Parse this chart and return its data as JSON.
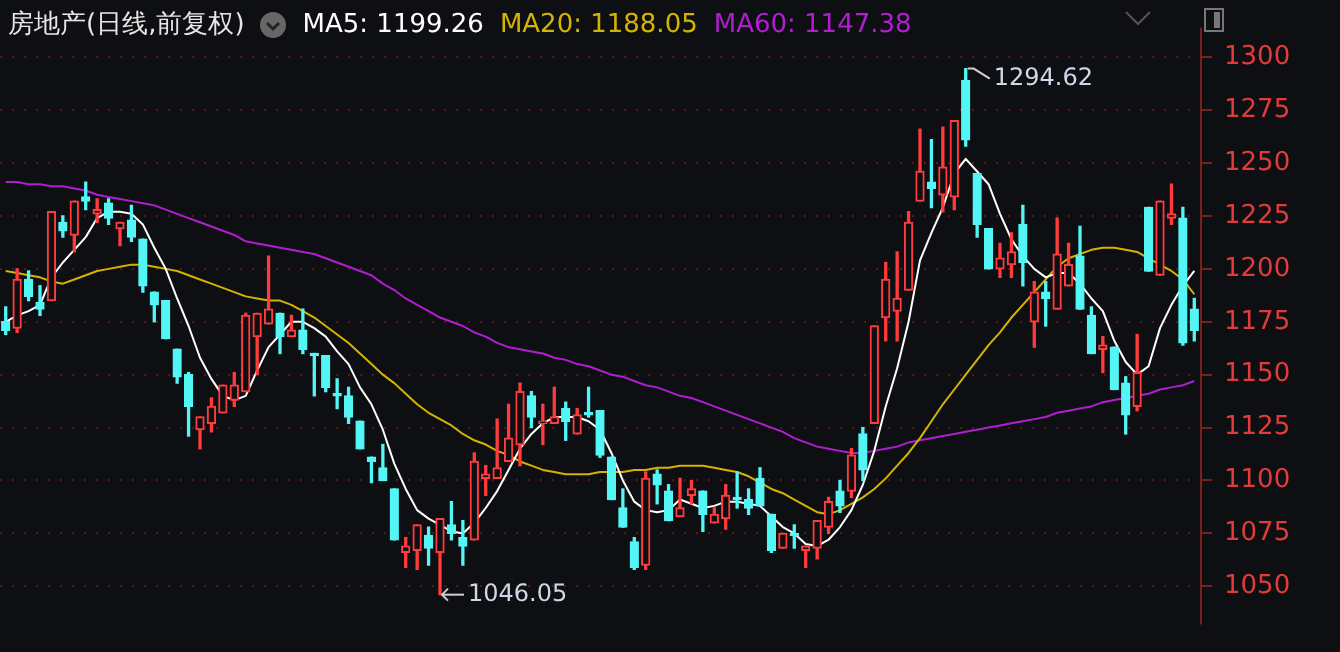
{
  "chart_data": {
    "type": "candlestick",
    "title": "房地产(日线,前复权)",
    "legend": "top left",
    "grid": "y",
    "tick_labels": "y",
    "ylim": [
      1032,
      1314
    ],
    "yticks": [
      1050,
      1075,
      1100,
      1125,
      1150,
      1175,
      1200,
      1225,
      1250,
      1275,
      1300
    ],
    "annotations": [
      "1294.62",
      "1046.05"
    ],
    "categories": [
      null,
      null,
      null,
      null,
      null,
      null,
      null,
      null,
      null,
      null,
      null,
      null,
      null,
      null,
      null,
      null,
      null,
      null,
      null,
      null,
      null,
      null,
      null,
      null,
      null,
      null,
      null,
      null,
      null,
      null,
      null,
      null,
      null,
      null,
      null,
      null,
      null,
      null,
      null,
      null,
      null,
      null,
      null,
      null,
      null,
      null,
      null,
      null,
      null,
      null,
      null,
      null,
      null,
      null,
      null,
      null,
      null,
      null,
      null,
      null,
      null,
      null,
      null,
      null,
      null,
      null,
      null,
      null,
      null,
      null,
      null,
      null,
      null,
      null,
      null,
      null,
      null,
      null,
      null,
      null,
      null,
      null,
      null,
      null,
      null,
      null,
      null,
      null,
      null,
      null,
      null,
      null,
      null,
      null,
      null,
      null,
      null,
      null,
      null,
      null,
      null,
      null,
      null,
      null,
      null
    ],
    "ohlc": [
      [
        1175,
        1182,
        1169,
        1171
      ],
      [
        1172,
        1200,
        1170,
        1195
      ],
      [
        1195,
        1199,
        1185,
        1187
      ],
      [
        1184,
        1192,
        1178,
        1181
      ],
      [
        1185,
        1227,
        1185,
        1227
      ],
      [
        1222,
        1225,
        1215,
        1218
      ],
      [
        1216,
        1232,
        1208,
        1232
      ],
      [
        1234,
        1241,
        1228,
        1232
      ],
      [
        1226,
        1233,
        1222,
        1228
      ],
      [
        1231,
        1233,
        1221,
        1224
      ],
      [
        1219,
        1222,
        1211,
        1222
      ],
      [
        1223,
        1230,
        1213,
        1215
      ],
      [
        1214,
        1214,
        1189,
        1192
      ],
      [
        1189,
        1189,
        1175,
        1183
      ],
      [
        1185,
        1185,
        1167,
        1167
      ],
      [
        1162,
        1162,
        1146,
        1149
      ],
      [
        1150,
        1151,
        1121,
        1135
      ],
      [
        1124,
        1130,
        1115,
        1130
      ],
      [
        1127,
        1139,
        1123,
        1135
      ],
      [
        1132,
        1145,
        1132,
        1145
      ],
      [
        1138,
        1151,
        1135,
        1145
      ],
      [
        1142,
        1179,
        1142,
        1178
      ],
      [
        1168,
        1179,
        1150,
        1179
      ],
      [
        1174,
        1206,
        1174,
        1181
      ],
      [
        1179,
        1179,
        1160,
        1168
      ],
      [
        1168,
        1178,
        1168,
        1171
      ],
      [
        1171,
        1181,
        1160,
        1162
      ],
      [
        1160,
        1160,
        1140,
        1159
      ],
      [
        1159,
        1159,
        1142,
        1144
      ],
      [
        1141,
        1148,
        1134,
        1140
      ],
      [
        1140,
        1144,
        1127,
        1130
      ],
      [
        1128,
        1128,
        1115,
        1115
      ],
      [
        1111,
        1111,
        1099,
        1109
      ],
      [
        1106,
        1117,
        1100,
        1100
      ],
      [
        1096,
        1096,
        1072,
        1072
      ],
      [
        1066,
        1073,
        1059,
        1069
      ],
      [
        1067,
        1079,
        1058,
        1079
      ],
      [
        1074,
        1078,
        1060,
        1068
      ],
      [
        1066,
        1082,
        1046.05,
        1082
      ],
      [
        1079,
        1090,
        1072,
        1075
      ],
      [
        1073,
        1081,
        1060,
        1069
      ],
      [
        1072,
        1113,
        1072,
        1109
      ],
      [
        1101,
        1107,
        1093,
        1103
      ],
      [
        1101,
        1129,
        1101,
        1106
      ],
      [
        1109,
        1136,
        1109,
        1120
      ],
      [
        1117,
        1146,
        1107,
        1142
      ],
      [
        1140,
        1142,
        1125,
        1130
      ],
      [
        1127,
        1136,
        1117,
        1128
      ],
      [
        1127,
        1144,
        1127,
        1130
      ],
      [
        1134,
        1137,
        1119,
        1128
      ],
      [
        1122,
        1134,
        1122,
        1131
      ],
      [
        1132,
        1144,
        1130,
        1131
      ],
      [
        1133,
        1133,
        1111,
        1112
      ],
      [
        1111,
        1111,
        1091,
        1091
      ],
      [
        1087,
        1096,
        1078,
        1078
      ],
      [
        1071,
        1073,
        1058,
        1059
      ],
      [
        1060,
        1104,
        1058,
        1101
      ],
      [
        1103,
        1105,
        1089,
        1098
      ],
      [
        1095,
        1098,
        1081,
        1081
      ],
      [
        1083,
        1101,
        1083,
        1087
      ],
      [
        1093,
        1100,
        1089,
        1096
      ],
      [
        1095,
        1095,
        1076,
        1084
      ],
      [
        1080,
        1087,
        1080,
        1084
      ],
      [
        1082,
        1098,
        1077,
        1093
      ],
      [
        1092,
        1104,
        1087,
        1091
      ],
      [
        1091,
        1096,
        1084,
        1087
      ],
      [
        1101,
        1106,
        1088,
        1088
      ],
      [
        1084,
        1084,
        1066,
        1067
      ],
      [
        1068,
        1075,
        1068,
        1075
      ],
      [
        1075,
        1079,
        1068,
        1074
      ],
      [
        1067,
        1069,
        1059,
        1069
      ],
      [
        1068,
        1081,
        1063,
        1081
      ],
      [
        1078,
        1092,
        1075,
        1090
      ],
      [
        1095,
        1100,
        1085,
        1088
      ],
      [
        1095,
        1115,
        1092,
        1112
      ],
      [
        1122,
        1125,
        1100,
        1105
      ],
      [
        1127,
        1173,
        1127,
        1173
      ],
      [
        1177,
        1203,
        1166,
        1195
      ],
      [
        1180,
        1208,
        1166,
        1186
      ],
      [
        1190,
        1227,
        1190,
        1222
      ],
      [
        1232,
        1266,
        1232,
        1246
      ],
      [
        1241,
        1261,
        1229,
        1238
      ],
      [
        1235,
        1267,
        1227,
        1248
      ],
      [
        1234,
        1270,
        1228,
        1270
      ],
      [
        1289,
        1294.62,
        1258,
        1261
      ],
      [
        1245,
        1245,
        1215,
        1221
      ],
      [
        1219,
        1219,
        1200,
        1200
      ],
      [
        1200,
        1212,
        1196,
        1205
      ],
      [
        1202,
        1217,
        1196,
        1208
      ],
      [
        1221,
        1230,
        1192,
        1203
      ],
      [
        1175,
        1194,
        1163,
        1189
      ],
      [
        1189,
        1194,
        1173,
        1186
      ],
      [
        1181,
        1224,
        1181,
        1207
      ],
      [
        1192,
        1212,
        1192,
        1202
      ],
      [
        1206,
        1220,
        1181,
        1181
      ],
      [
        1178,
        1182,
        1160,
        1160
      ],
      [
        1162,
        1168,
        1151,
        1164
      ],
      [
        1163,
        1163,
        1143,
        1143
      ],
      [
        1146,
        1149,
        1122,
        1131
      ],
      [
        1135,
        1169,
        1133,
        1151
      ],
      [
        1229,
        1229,
        1199,
        1199
      ],
      [
        1197,
        1232,
        1197,
        1232
      ],
      [
        1224,
        1240,
        1221,
        1226
      ],
      [
        1224,
        1229,
        1164,
        1165
      ],
      [
        1181,
        1186,
        1166,
        1171
      ]
    ],
    "series": [
      {
        "type": "line",
        "name": "MA5: 1199.26",
        "color": "#ffffff",
        "values": [
          1175,
          1178,
          1180,
          1183,
          1196,
          1203,
          1209,
          1215,
          1224,
          1227,
          1227,
          1226,
          1221,
          1210,
          1200,
          1186,
          1173,
          1158,
          1148,
          1140,
          1138,
          1140,
          1152,
          1163,
          1169,
          1175,
          1175,
          1172,
          1168,
          1161,
          1155,
          1144,
          1136,
          1124,
          1108,
          1096,
          1086,
          1082,
          1079,
          1076,
          1075,
          1080,
          1087,
          1095,
          1105,
          1115,
          1122,
          1127,
          1130,
          1130,
          1130,
          1128,
          1124,
          1113,
          1100,
          1090,
          1086,
          1085,
          1086,
          1091,
          1089,
          1087,
          1088,
          1090,
          1090,
          1089,
          1088,
          1083,
          1078,
          1075,
          1070,
          1069,
          1072,
          1078,
          1086,
          1098,
          1114,
          1135,
          1153,
          1175,
          1204,
          1217,
          1229,
          1245,
          1252,
          1246,
          1240,
          1226,
          1214,
          1206,
          1200,
          1196,
          1198,
          1198,
          1193,
          1186,
          1180,
          1166,
          1156,
          1150,
          1154,
          1172,
          1183,
          1192,
          1199
        ]
      },
      {
        "type": "line",
        "name": "MA20: 1188.05",
        "color": "#d4b400",
        "values": [
          1199,
          1198,
          1197,
          1196,
          1194,
          1193,
          1195,
          1197,
          1199,
          1200,
          1201,
          1202,
          1202,
          1201,
          1200,
          1199,
          1197,
          1195,
          1193,
          1191,
          1189,
          1187,
          1186,
          1185,
          1185,
          1183,
          1180,
          1177,
          1173,
          1169,
          1165,
          1160,
          1155,
          1150,
          1146,
          1141,
          1136,
          1132,
          1129,
          1126,
          1122,
          1119,
          1117,
          1114,
          1112,
          1109,
          1107,
          1105,
          1104,
          1103,
          1103,
          1103,
          1104,
          1104,
          1104,
          1105,
          1105,
          1106,
          1106,
          1107,
          1107,
          1107,
          1106,
          1105,
          1104,
          1102,
          1099,
          1096,
          1094,
          1091,
          1088,
          1085,
          1084,
          1086,
          1089,
          1092,
          1096,
          1101,
          1107,
          1113,
          1120,
          1128,
          1136,
          1143,
          1150,
          1157,
          1164,
          1170,
          1177,
          1183,
          1189,
          1195,
          1201,
          1205,
          1207,
          1209,
          1210,
          1210,
          1209,
          1208,
          1205,
          1202,
          1199,
          1195,
          1188
        ]
      },
      {
        "type": "line",
        "name": "MA60: 1147.38",
        "color": "#b01ed0",
        "values": [
          1241,
          1241,
          1240,
          1240,
          1239,
          1239,
          1238,
          1237,
          1235,
          1234,
          1233,
          1232,
          1231,
          1230,
          1228,
          1226,
          1224,
          1222,
          1220,
          1218,
          1216,
          1213,
          1212,
          1211,
          1210,
          1209,
          1208,
          1207,
          1205,
          1203,
          1201,
          1199,
          1197,
          1193,
          1190,
          1186,
          1183,
          1180,
          1177,
          1175,
          1173,
          1170,
          1168,
          1165,
          1163,
          1162,
          1161,
          1160,
          1158,
          1157,
          1155,
          1154,
          1152,
          1150,
          1149,
          1147,
          1145,
          1144,
          1142,
          1140,
          1139,
          1137,
          1135,
          1133,
          1131,
          1129,
          1127,
          1125,
          1123,
          1120,
          1118,
          1116,
          1115,
          1114,
          1113,
          1113,
          1114,
          1115,
          1116,
          1118,
          1119,
          1120,
          1121,
          1122,
          1123,
          1124,
          1125,
          1126,
          1127,
          1128,
          1129,
          1130,
          1132,
          1133,
          1134,
          1135,
          1137,
          1138,
          1139,
          1140,
          1141,
          1143,
          1144,
          1145,
          1147
        ]
      }
    ]
  }
}
